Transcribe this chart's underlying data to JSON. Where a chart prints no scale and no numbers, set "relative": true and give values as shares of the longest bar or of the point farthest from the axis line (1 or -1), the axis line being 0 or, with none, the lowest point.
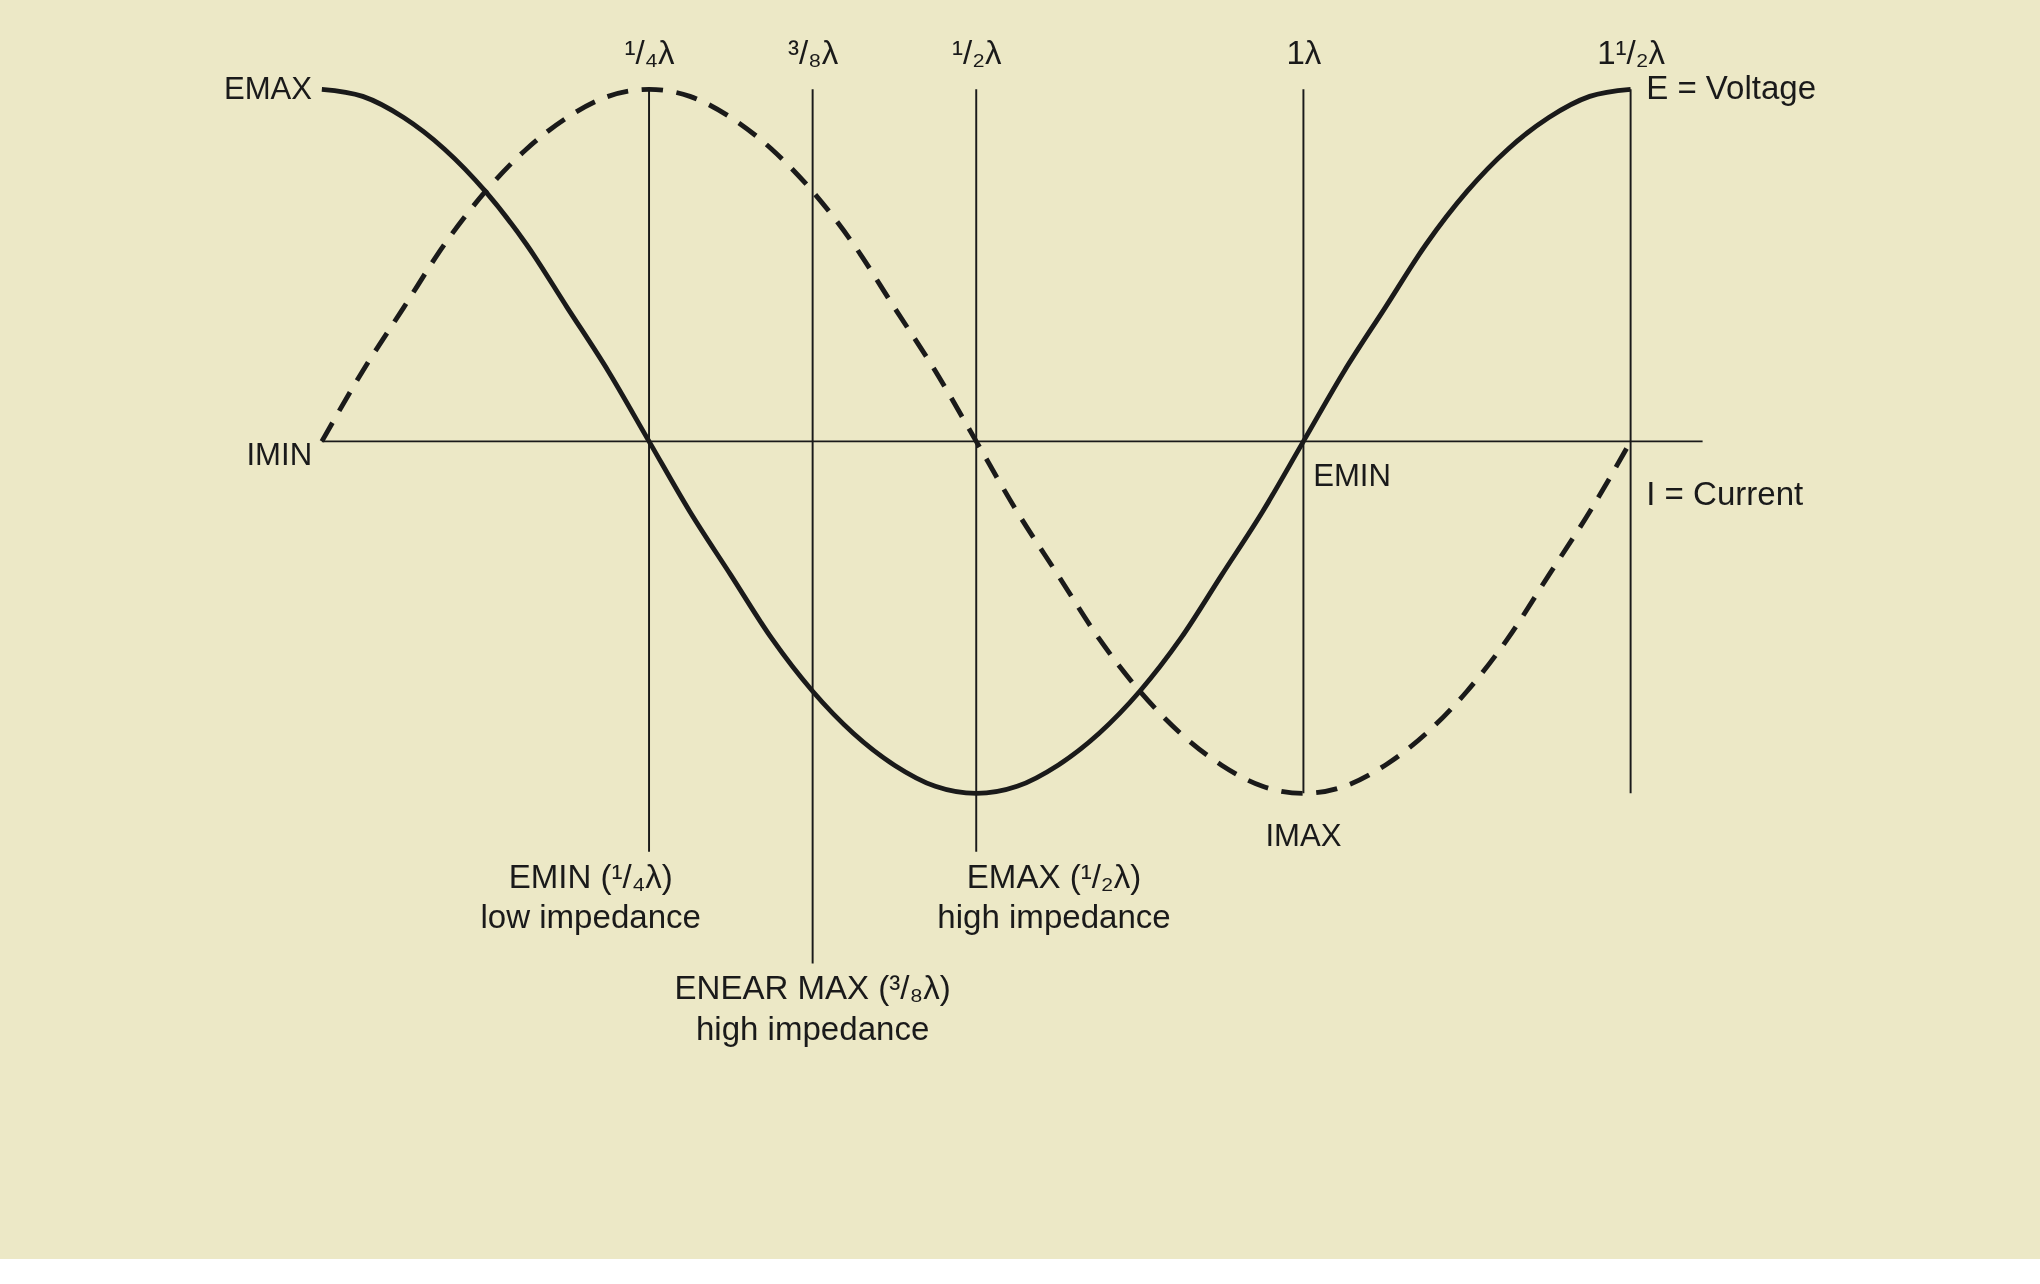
{
  "chart_data": {
    "type": "line",
    "relative": true,
    "categories": [
      null,
      null,
      null,
      null,
      null,
      null,
      null,
      null,
      "¹/₄λ",
      null,
      null,
      null,
      "³/₈λ",
      null,
      null,
      null,
      "¹/₂λ",
      null,
      null,
      null,
      null,
      null,
      null,
      null,
      "1λ",
      null,
      null,
      null,
      null,
      null,
      null,
      null,
      "1¹/₂λ"
    ],
    "series": [
      {
        "name": "E = Voltage",
        "color": "#1a1a1a",
        "line_style": "solid",
        "values": [
          1,
          0.98,
          0.92,
          0.83,
          0.71,
          0.56,
          0.38,
          0.2,
          0,
          -0.2,
          -0.38,
          -0.56,
          -0.71,
          -0.83,
          -0.92,
          -0.98,
          -1,
          -0.98,
          -0.92,
          -0.83,
          -0.71,
          -0.56,
          -0.38,
          -0.2,
          0,
          0.2,
          0.38,
          0.56,
          0.71,
          0.83,
          0.92,
          0.98,
          1
        ]
      },
      {
        "name": "I = Current",
        "color": "#1a1a1a",
        "line_style": "dashed",
        "values": [
          0,
          0.2,
          0.38,
          0.56,
          0.71,
          0.83,
          0.92,
          0.98,
          1,
          0.98,
          0.92,
          0.83,
          0.71,
          0.56,
          0.38,
          0.2,
          0,
          -0.2,
          -0.38,
          -0.56,
          -0.71,
          -0.83,
          -0.92,
          -0.98,
          -1,
          -0.98,
          -0.92,
          -0.83,
          -0.71,
          -0.56,
          -0.38,
          -0.2,
          0
        ]
      }
    ],
    "tick_labels": "x",
    "grid": "x",
    "annotations": [
      "EMAX",
      "IMIN",
      {
        "text": "EMIN",
        "x": "1λ",
        "y": 0
      },
      {
        "text": "IMAX",
        "x": "1λ",
        "y": -1
      },
      "EMIN (¹/₄λ)\nlow impedance",
      "ENEAR MAX (³/₈λ)\nhigh impedance",
      "EMAX (¹/₂λ)\nhigh impedance"
    ]
  }
}
